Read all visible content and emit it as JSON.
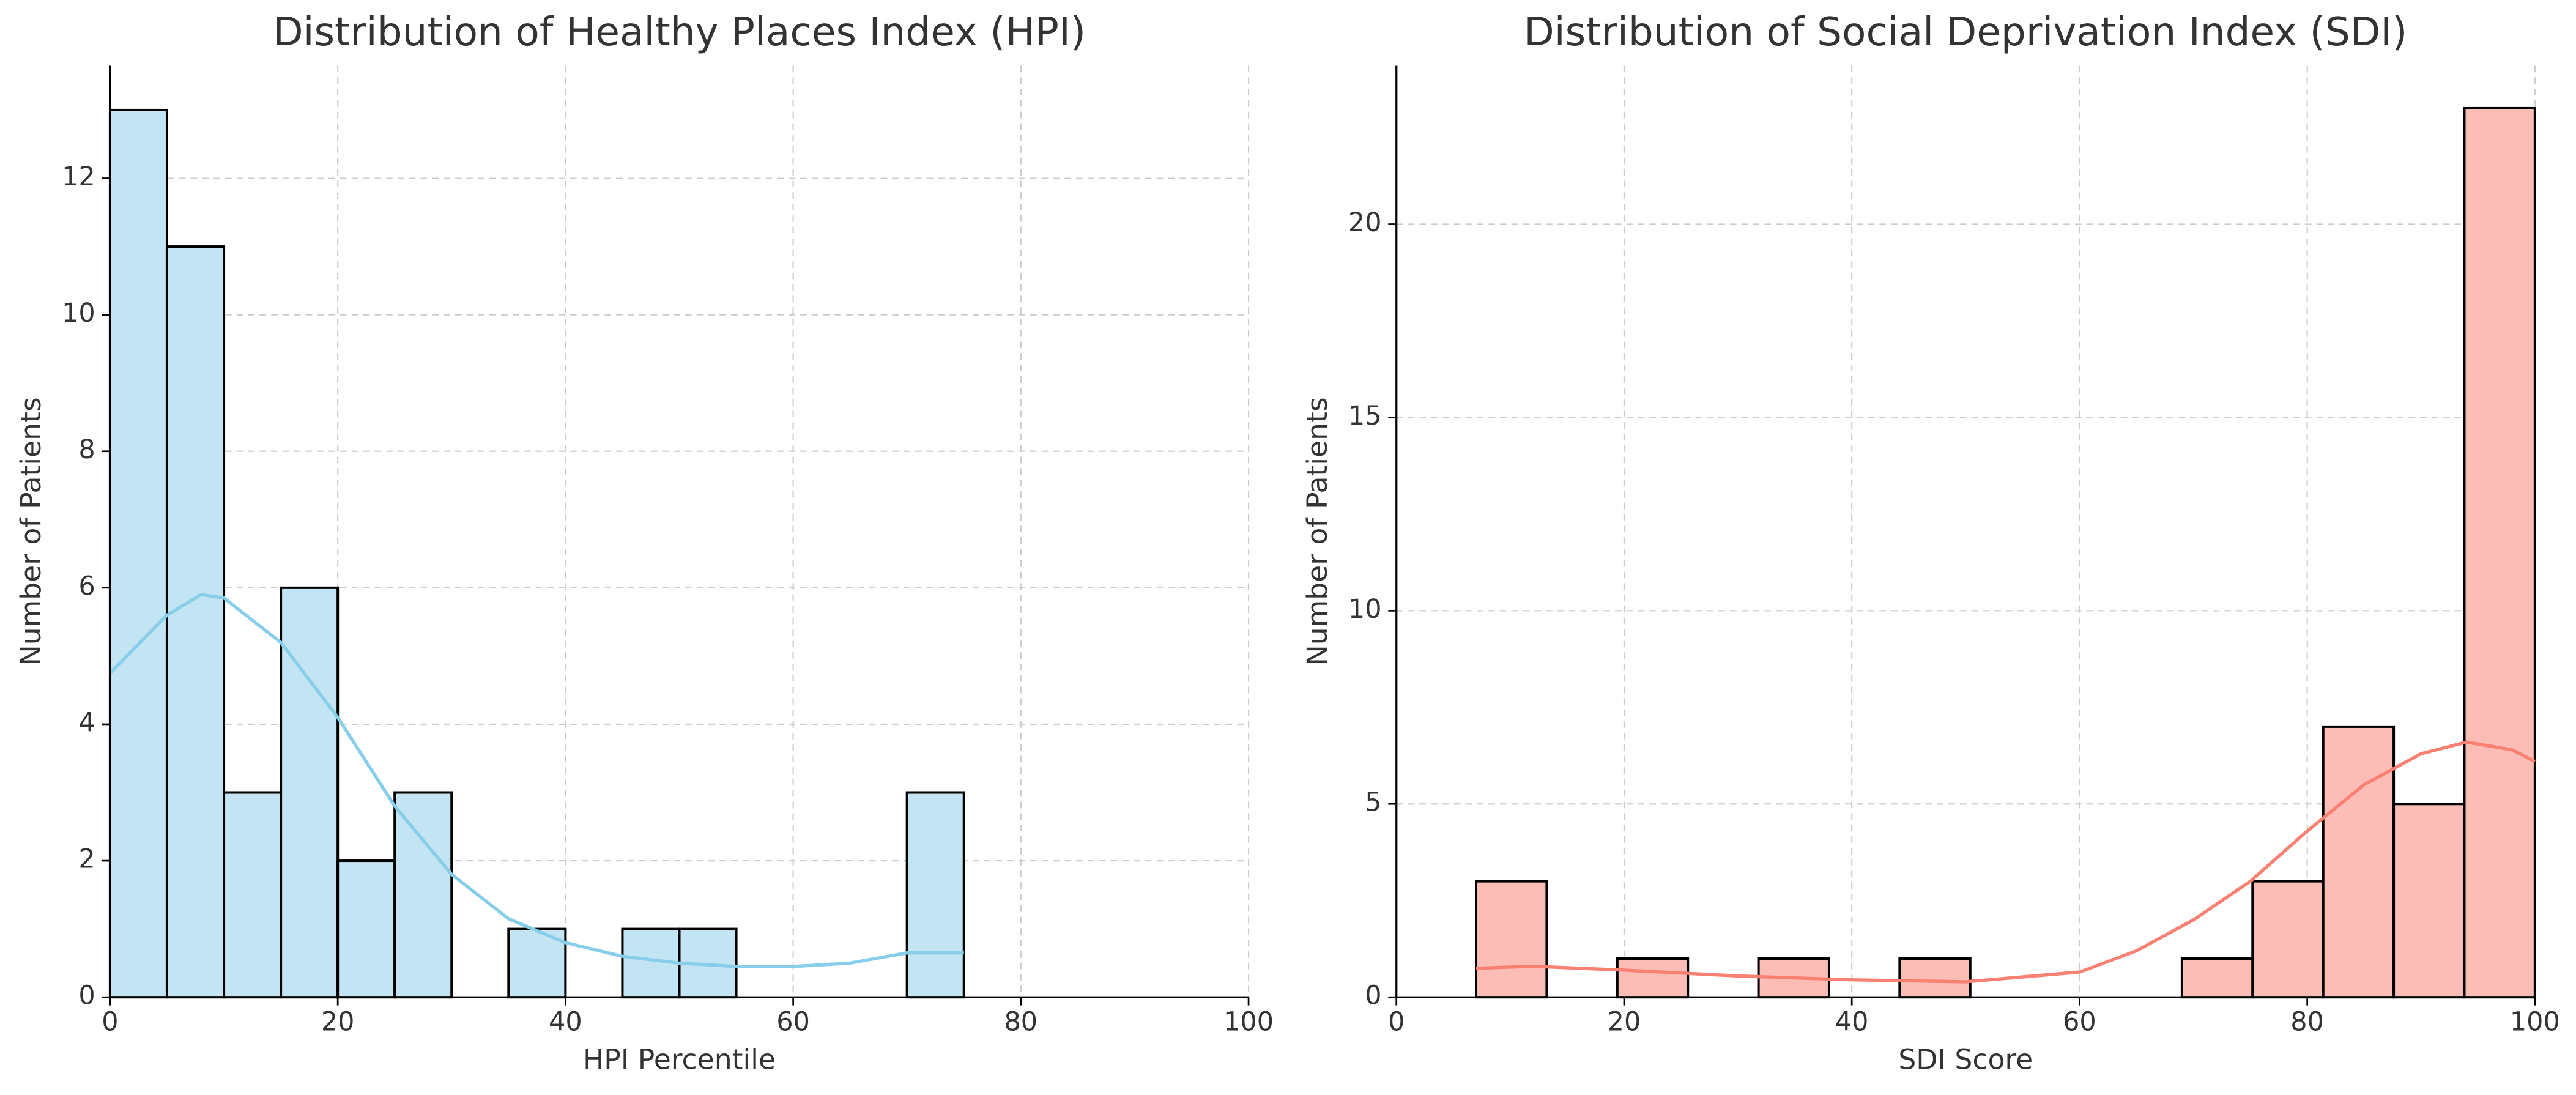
{
  "chart_data": [
    {
      "type": "histogram",
      "title": "Distribution of Healthy Places Index (HPI)",
      "x_label": "HPI Percentile",
      "y_label": "Number of Patients",
      "bins": [
        0,
        5,
        10,
        15,
        20,
        25,
        30,
        35,
        40,
        45,
        50,
        55,
        60,
        65,
        70,
        75
      ],
      "counts": [
        13,
        11,
        3,
        6,
        2,
        3,
        0,
        1,
        0,
        1,
        1,
        0,
        0,
        0,
        3
      ],
      "color": "#c3e4f2",
      "line_color": "#87ceeb",
      "kde": {
        "x": [
          0,
          5,
          8,
          10,
          15,
          20,
          25,
          30,
          35,
          40,
          45,
          50,
          55,
          60,
          65,
          70,
          75
        ],
        "values": [
          4.75,
          5.6,
          5.9,
          5.85,
          5.2,
          4.1,
          2.8,
          1.8,
          1.15,
          0.8,
          0.6,
          0.5,
          0.45,
          0.45,
          0.5,
          0.65,
          0.65
        ]
      },
      "xlim": [
        0,
        100
      ],
      "xticks": [
        0,
        20,
        40,
        60,
        80,
        100
      ],
      "ylim": [
        0,
        13.65
      ],
      "yticks": [
        0,
        2,
        4,
        6,
        8,
        10,
        12
      ],
      "grid": true
    },
    {
      "type": "histogram",
      "title": "Distribution of Social Deprivation Index (SDI)",
      "x_label": "SDI Score",
      "y_label": "Number of Patients",
      "bins": [
        7,
        13.2,
        19.4,
        25.6,
        31.8,
        38,
        44.2,
        50.4,
        56.6,
        62.8,
        69,
        75.2,
        81.4,
        87.6,
        93.8,
        100
      ],
      "counts": [
        3,
        0,
        1,
        0,
        1,
        0,
        1,
        0,
        0,
        0,
        1,
        3,
        7,
        5,
        23
      ],
      "color": "#fbbdb6",
      "line_color": "#fa8072",
      "kde": {
        "x": [
          7,
          12,
          20,
          30,
          40,
          50,
          60,
          65,
          70,
          75,
          80,
          85,
          90,
          94,
          98,
          100
        ],
        "values": [
          0.75,
          0.8,
          0.7,
          0.55,
          0.45,
          0.4,
          0.65,
          1.2,
          2,
          3,
          4.3,
          5.5,
          6.3,
          6.6,
          6.4,
          6.1
        ]
      },
      "xlim": [
        0,
        100
      ],
      "xticks": [
        0,
        20,
        40,
        60,
        80,
        100
      ],
      "ylim": [
        0,
        24.1
      ],
      "yticks": [
        0,
        5,
        10,
        15,
        20
      ],
      "grid": true
    }
  ]
}
